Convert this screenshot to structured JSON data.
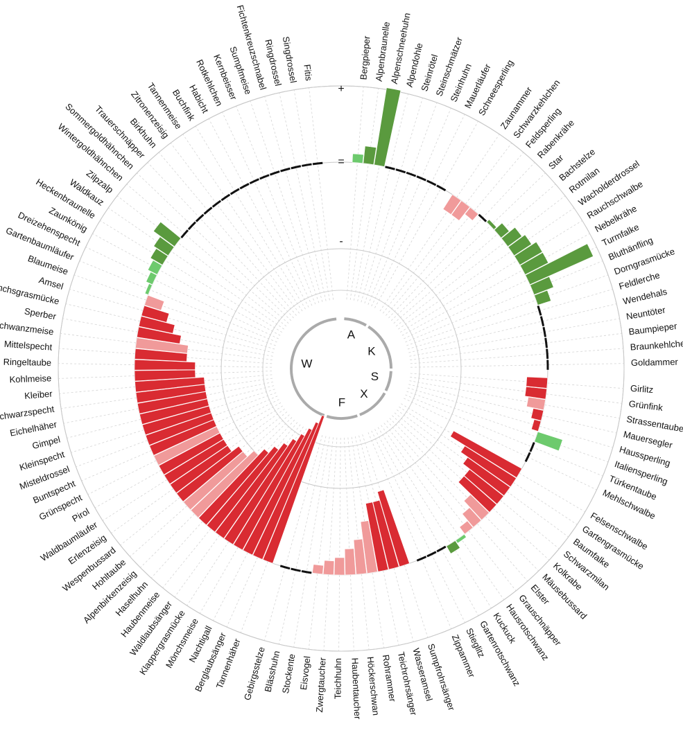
{
  "chart_data": {
    "type": "radial-bar",
    "scale_labels": [
      "+",
      "=",
      "-"
    ],
    "colors": {
      "positive_strong": "#5a9a3e",
      "positive_light": "#6dca6d",
      "negative_strong": "#d92b32",
      "negative_light": "#f09a9a",
      "zero_marker": "#111111",
      "grid": "#bbbbbb",
      "ring": "#aaaaaa"
    },
    "sectors": [
      {
        "name": "A",
        "species": [
          {
            "label": "Bergpieper",
            "value": 0.05,
            "shade": "light"
          },
          {
            "label": "Alpenbraunelle",
            "value": 0.1,
            "shade": "strong"
          },
          {
            "label": "Alpenschneehuhn",
            "value": 0.45,
            "shade": "strong"
          },
          {
            "label": "Alpendohle",
            "value": 0,
            "shade": "none"
          },
          {
            "label": "Steinrötel",
            "value": 0,
            "shade": "none"
          },
          {
            "label": "Steinschmätzer",
            "value": 0,
            "shade": "none"
          },
          {
            "label": "Steinhuhn",
            "value": 0,
            "shade": "none"
          },
          {
            "label": "Mauerläufer",
            "value": 0,
            "shade": "none"
          },
          {
            "label": "Schneesperling",
            "value": 0,
            "shade": "none"
          }
        ]
      },
      {
        "name": "K",
        "species": [
          {
            "label": "Zaunammer",
            "value": -0.1,
            "shade": "light"
          },
          {
            "label": "Schwarzkehlchen",
            "value": -0.1,
            "shade": "light"
          },
          {
            "label": "Feldsperling",
            "value": -0.05,
            "shade": "light"
          },
          {
            "label": "Rabenkrähe",
            "value": 0,
            "shade": "none"
          },
          {
            "label": "Star",
            "value": 0.02,
            "shade": "strong"
          },
          {
            "label": "Bachstelze",
            "value": 0.06,
            "shade": "strong"
          },
          {
            "label": "Rotmilan",
            "value": 0.1,
            "shade": "strong"
          },
          {
            "label": "Wacholderdrossel",
            "value": 0.12,
            "shade": "strong"
          },
          {
            "label": "Rauchschwalbe",
            "value": 0.15,
            "shade": "strong"
          },
          {
            "label": "Nebelkrähe",
            "value": 0.15,
            "shade": "strong"
          },
          {
            "label": "Turmfalke",
            "value": 0.4,
            "shade": "strong"
          },
          {
            "label": "Bluthänfling",
            "value": 0.12,
            "shade": "strong"
          },
          {
            "label": "Dorngrasmücke",
            "value": 0.08,
            "shade": "strong"
          },
          {
            "label": "Feldlerche",
            "value": 0,
            "shade": "none"
          },
          {
            "label": "Wendehals",
            "value": 0,
            "shade": "none"
          },
          {
            "label": "Neuntöter",
            "value": 0,
            "shade": "none"
          },
          {
            "label": "Baumpieper",
            "value": 0,
            "shade": "none"
          },
          {
            "label": "Braunkehlchen",
            "value": 0,
            "shade": "none"
          },
          {
            "label": "Goldammer",
            "value": 0,
            "shade": "none"
          }
        ]
      },
      {
        "name": "S",
        "species": [
          {
            "label": "Girlitz",
            "value": -0.12,
            "shade": "strong"
          },
          {
            "label": "Grünfink",
            "value": -0.12,
            "shade": "strong"
          },
          {
            "label": "Strassentaube",
            "value": -0.1,
            "shade": "light"
          },
          {
            "label": "Mauersegler",
            "value": -0.06,
            "shade": "strong"
          },
          {
            "label": "Haussperling",
            "value": -0.04,
            "shade": "strong"
          },
          {
            "label": "Italiensperling",
            "value": 0.15,
            "shade": "light"
          },
          {
            "label": "Türkentaube",
            "value": 0,
            "shade": "none"
          },
          {
            "label": "Mehlschwalbe",
            "value": 0,
            "shade": "none"
          }
        ]
      },
      {
        "name": "X",
        "species": [
          {
            "label": "Felsenschwalbe",
            "value": -0.45,
            "shade": "strong"
          },
          {
            "label": "Gartengrasmücke",
            "value": -0.35,
            "shade": "strong"
          },
          {
            "label": "Baumfalke",
            "value": -0.3,
            "shade": "strong"
          },
          {
            "label": "Schwarzmilan",
            "value": -0.25,
            "shade": "strong"
          },
          {
            "label": "Kolkrabe",
            "value": -0.25,
            "shade": "strong"
          },
          {
            "label": "Mäusebussard",
            "value": -0.15,
            "shade": "light"
          },
          {
            "label": "Elster",
            "value": -0.1,
            "shade": "light"
          },
          {
            "label": "Grauschnäpper",
            "value": -0.05,
            "shade": "light"
          },
          {
            "label": "Hausrotschwanz",
            "value": 0.02,
            "shade": "light"
          },
          {
            "label": "Kuckuck",
            "value": 0.05,
            "shade": "strong"
          },
          {
            "label": "Gartenrotschwanz",
            "value": 0,
            "shade": "none"
          },
          {
            "label": "Stieglitz",
            "value": 0,
            "shade": "none"
          },
          {
            "label": "Zippammer",
            "value": 0,
            "shade": "none"
          }
        ]
      },
      {
        "name": "F",
        "species": [
          {
            "label": "Sumpfrohrsänger",
            "value": -0.45,
            "shade": "strong"
          },
          {
            "label": "Wasseramsel",
            "value": -0.4,
            "shade": "strong"
          },
          {
            "label": "Teichrohrsänger",
            "value": -0.4,
            "shade": "strong"
          },
          {
            "label": "Rohrammer",
            "value": -0.3,
            "shade": "light"
          },
          {
            "label": "Höckerschwan",
            "value": -0.2,
            "shade": "light"
          },
          {
            "label": "Haubentaucher",
            "value": -0.15,
            "shade": "light"
          },
          {
            "label": "Teichhuhn",
            "value": -0.1,
            "shade": "light"
          },
          {
            "label": "Zwergtaucher",
            "value": -0.08,
            "shade": "light"
          },
          {
            "label": "Eisvogel",
            "value": -0.05,
            "shade": "light"
          },
          {
            "label": "Stockente",
            "value": 0,
            "shade": "none"
          },
          {
            "label": "Blässhuhn",
            "value": 0,
            "shade": "none"
          },
          {
            "label": "Gebirgsstelze",
            "value": 0,
            "shade": "none"
          }
        ]
      },
      {
        "name": "W",
        "species": [
          {
            "label": "Tannenhäher",
            "value": -0.9,
            "shade": "strong"
          },
          {
            "label": "Berglaubsänger",
            "value": -0.85,
            "shade": "strong"
          },
          {
            "label": "Nachtigall",
            "value": -0.8,
            "shade": "strong"
          },
          {
            "label": "Mönchsmeise",
            "value": -0.75,
            "shade": "strong"
          },
          {
            "label": "Klappergrasmücke",
            "value": -0.7,
            "shade": "strong"
          },
          {
            "label": "Waldlaubsänger",
            "value": -0.65,
            "shade": "strong"
          },
          {
            "label": "Haubenmeise",
            "value": -0.6,
            "shade": "strong"
          },
          {
            "label": "Haselhuhn",
            "value": -0.55,
            "shade": "strong"
          },
          {
            "label": "Alpenbirkenzeisig",
            "value": -0.5,
            "shade": "light"
          },
          {
            "label": "Hohltaube",
            "value": -0.45,
            "shade": "light"
          },
          {
            "label": "Wespenbussard",
            "value": -0.45,
            "shade": "strong"
          },
          {
            "label": "Erlenzeisig",
            "value": -0.4,
            "shade": "strong"
          },
          {
            "label": "Waldbaumläufer",
            "value": -0.4,
            "shade": "strong"
          },
          {
            "label": "Pirol",
            "value": -0.4,
            "shade": "strong"
          },
          {
            "label": "Grünspecht",
            "value": -0.4,
            "shade": "light"
          },
          {
            "label": "Buntspecht",
            "value": -0.4,
            "shade": "strong"
          },
          {
            "label": "Misteldrossel",
            "value": -0.4,
            "shade": "strong"
          },
          {
            "label": "Kleinspecht",
            "value": -0.4,
            "shade": "strong"
          },
          {
            "label": "Gimpel",
            "value": -0.4,
            "shade": "strong"
          },
          {
            "label": "Eichelhäher",
            "value": -0.4,
            "shade": "strong"
          },
          {
            "label": "Schwarzspecht",
            "value": -0.4,
            "shade": "strong"
          },
          {
            "label": "Kleiber",
            "value": -0.4,
            "shade": "strong"
          },
          {
            "label": "Kohlmeise",
            "value": -0.35,
            "shade": "strong"
          },
          {
            "label": "Ringeltaube",
            "value": -0.35,
            "shade": "strong"
          },
          {
            "label": "Mittelspecht",
            "value": -0.3,
            "shade": "strong"
          },
          {
            "label": "Schwanzmeise",
            "value": -0.3,
            "shade": "light"
          },
          {
            "label": "Sperber",
            "value": -0.25,
            "shade": "strong"
          },
          {
            "label": "Mönchsgrasmücke",
            "value": -0.2,
            "shade": "strong"
          },
          {
            "label": "Amsel",
            "value": -0.15,
            "shade": "strong"
          },
          {
            "label": "Blaumeise",
            "value": -0.1,
            "shade": "light"
          },
          {
            "label": "Gartenbaumläufer",
            "value": 0.02,
            "shade": "light"
          },
          {
            "label": "Dreizehenspecht",
            "value": 0.04,
            "shade": "light"
          },
          {
            "label": "Zaunkönig",
            "value": 0.06,
            "shade": "light"
          },
          {
            "label": "Heckenbraunelle",
            "value": 0.08,
            "shade": "strong"
          },
          {
            "label": "Waldkauz",
            "value": 0.1,
            "shade": "strong"
          },
          {
            "label": "Zilpzalp",
            "value": 0.15,
            "shade": "strong"
          },
          {
            "label": "Wintergoldhähnchen",
            "value": 0,
            "shade": "none"
          },
          {
            "label": "Sommergoldhähnchen",
            "value": 0,
            "shade": "none"
          },
          {
            "label": "Trauerschnäpper",
            "value": 0,
            "shade": "none"
          },
          {
            "label": "Birkhuhn",
            "value": 0,
            "shade": "none"
          },
          {
            "label": "Zitronenzeisig",
            "value": 0,
            "shade": "none"
          },
          {
            "label": "Tannenmeise",
            "value": 0,
            "shade": "none"
          },
          {
            "label": "Buchfink",
            "value": 0,
            "shade": "none"
          },
          {
            "label": "Habicht",
            "value": 0,
            "shade": "none"
          },
          {
            "label": "Rotkehlchen",
            "value": 0,
            "shade": "none"
          },
          {
            "label": "Kernbeisser",
            "value": 0,
            "shade": "none"
          },
          {
            "label": "Sumpfmeise",
            "value": 0,
            "shade": "none"
          },
          {
            "label": "Fichtenkreuzschnabel",
            "value": 0,
            "shade": "none"
          },
          {
            "label": "Ringdrossel",
            "value": 0,
            "shade": "none"
          },
          {
            "label": "Singdrossel",
            "value": 0,
            "shade": "none"
          },
          {
            "label": "Fitis",
            "value": 0,
            "shade": "none"
          }
        ]
      }
    ]
  }
}
